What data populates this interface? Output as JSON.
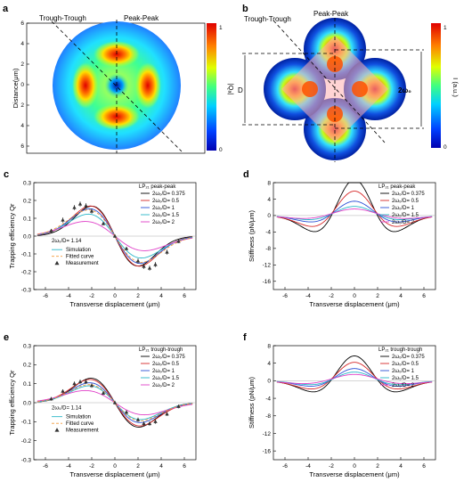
{
  "colors": {
    "black": "#000000",
    "red": "#d62728",
    "blue": "#2a4fd6",
    "cyan": "#29b6c8",
    "magenta": "#e040c8",
    "orange": "#f29a3a",
    "frame": "#000000"
  },
  "panels": {
    "a": {
      "label": "a",
      "left_annot": "Trough-Trough",
      "right_annot": "Peak-Peak",
      "ylabel": "Distance(μm)",
      "yticks": [
        "6",
        "4",
        "2",
        "0",
        "2",
        "4",
        "6"
      ],
      "cbar_label": "|Qₐ|",
      "cbar_max": "1",
      "cbar_min": "0"
    },
    "b": {
      "label": "b",
      "left_annot": "Trough-Trough",
      "right_annot": "Peak-Peak",
      "d_label": "D",
      "w_label": "2ω₀",
      "cbar_label": "I (a.u.)",
      "cbar_max": "1",
      "cbar_min": "0"
    }
  },
  "chart_data": [
    {
      "id": "c",
      "type": "line",
      "label": "c",
      "title": "LP₂₁  peak-peak",
      "xlabel": "Transverse displacement (μm)",
      "ylabel": "Trapping efficiency Qr",
      "xlim": [
        -7,
        7
      ],
      "ylim": [
        -0.3,
        0.3
      ],
      "xticks": [
        "-6",
        "-4",
        "-2",
        "0",
        "2",
        "4",
        "6"
      ],
      "yticks": [
        "0.3",
        "0.2",
        "0.1",
        "0.0",
        "-0.1",
        "-0.2",
        "-0.3"
      ],
      "legend": [
        "2ω₀/D= 0.375",
        "2ω₀/D= 0.5",
        "2ω₀/D= 1",
        "2ω₀/D= 1.5",
        "2ω₀/D= 2"
      ],
      "legend2_title": "2ω₀/D= 1.14",
      "legend2": [
        "Simulation",
        "Fitted curve",
        "Measurement"
      ],
      "series": [
        {
          "name": "2ω₀/D= 0.375",
          "kind": "qr",
          "A": 0.27,
          "p": 3.2,
          "s": 0.9
        },
        {
          "name": "2ω₀/D= 0.5",
          "kind": "qr",
          "A": 0.24,
          "p": 3.0,
          "s": 1.05
        },
        {
          "name": "2ω₀/D= 1",
          "kind": "qr",
          "A": 0.19,
          "p": 2.7,
          "s": 1.3
        },
        {
          "name": "2ω₀/D= 1.5",
          "kind": "qr",
          "A": 0.14,
          "p": 2.6,
          "s": 1.7
        },
        {
          "name": "2ω₀/D= 2",
          "kind": "qr",
          "A": 0.09,
          "p": 2.8,
          "s": 2.2
        }
      ],
      "fit": {
        "A": 0.18,
        "p": 2.8,
        "s": 1.4
      },
      "measurement": {
        "x": [
          -5.5,
          -4.5,
          -3.5,
          -3,
          -2.5,
          -2,
          -1,
          0,
          1,
          2,
          2.5,
          3,
          3.5,
          4.5,
          5.5
        ],
        "y": [
          0.03,
          0.09,
          0.16,
          0.18,
          0.17,
          0.14,
          0.07,
          0.0,
          -0.07,
          -0.14,
          -0.17,
          -0.18,
          -0.16,
          -0.09,
          -0.03
        ],
        "err": [
          0.01,
          0.015,
          0.015,
          0.015,
          0.015,
          0.015,
          0.01,
          0.01,
          0.01,
          0.015,
          0.015,
          0.015,
          0.015,
          0.015,
          0.01
        ]
      }
    },
    {
      "id": "d",
      "type": "line",
      "label": "d",
      "title": "LP₂₁  peak-peak",
      "xlabel": "Transverse displacement (μm)",
      "ylabel": "Stiffness (pN/μm)",
      "xlim": [
        -7,
        7
      ],
      "ylim": [
        -18,
        8
      ],
      "xticks": [
        "-6",
        "-4",
        "-2",
        "0",
        "2",
        "4",
        "6"
      ],
      "yticks": [
        "8",
        "4",
        "0",
        "-4",
        "-8",
        "-12",
        "-16"
      ],
      "legend": [
        "2ω₀/D= 0.375",
        "2ω₀/D= 0.5",
        "2ω₀/D= 1",
        "2ω₀/D= 1.5",
        "2ω₀/D= 2"
      ],
      "series": [
        {
          "name": "2ω₀/D= 0.375",
          "kind": "k",
          "A": 0.27,
          "p": 3.2,
          "s": 0.9,
          "scale": -63
        },
        {
          "name": "2ω₀/D= 0.5",
          "kind": "k",
          "A": 0.24,
          "p": 3.0,
          "s": 1.05,
          "scale": -45
        },
        {
          "name": "2ω₀/D= 1",
          "kind": "k",
          "A": 0.19,
          "p": 2.7,
          "s": 1.3,
          "scale": -30
        },
        {
          "name": "2ω₀/D= 1.5",
          "kind": "k",
          "A": 0.14,
          "p": 2.6,
          "s": 1.7,
          "scale": -25
        },
        {
          "name": "2ω₀/D= 2",
          "kind": "k",
          "A": 0.09,
          "p": 2.8,
          "s": 2.2,
          "scale": -30
        }
      ]
    },
    {
      "id": "e",
      "type": "line",
      "label": "e",
      "title": "LP₂₁  trough-trough",
      "xlabel": "Transverse displacement (μm)",
      "ylabel": "Trapping efficiency Qr",
      "xlim": [
        -7,
        7
      ],
      "ylim": [
        -0.3,
        0.3
      ],
      "xticks": [
        "-6",
        "-4",
        "-2",
        "0",
        "2",
        "4",
        "6"
      ],
      "yticks": [
        "0.3",
        "0.2",
        "0.1",
        "0.0",
        "-0.1",
        "-0.2",
        "-0.3"
      ],
      "legend": [
        "2ω₀/D= 0.375",
        "2ω₀/D= 0.5",
        "2ω₀/D= 1",
        "2ω₀/D= 1.5",
        "2ω₀/D= 2"
      ],
      "legend2_title": "2ω₀/D= 1.14",
      "legend2": [
        "Simulation",
        "Fitted curve",
        "Measurement"
      ],
      "series": [
        {
          "name": "2ω₀/D= 0.375",
          "kind": "qr",
          "A": 0.2,
          "p": 3.2,
          "s": 0.95
        },
        {
          "name": "2ω₀/D= 0.5",
          "kind": "qr",
          "A": 0.17,
          "p": 3.0,
          "s": 1.1
        },
        {
          "name": "2ω₀/D= 1",
          "kind": "qr",
          "A": 0.13,
          "p": 2.7,
          "s": 1.3
        },
        {
          "name": "2ω₀/D= 1.5",
          "kind": "qr",
          "A": 0.1,
          "p": 2.5,
          "s": 1.7
        },
        {
          "name": "2ω₀/D= 2",
          "kind": "qr",
          "A": 0.07,
          "p": 2.8,
          "s": 2.2
        }
      ],
      "fit": {
        "A": 0.115,
        "p": 2.7,
        "s": 1.4
      },
      "measurement": {
        "x": [
          -5.5,
          -4.5,
          -3.5,
          -3,
          -2.5,
          -2,
          -1,
          0,
          1,
          2,
          2.5,
          3,
          3.5,
          4.5,
          5.5
        ],
        "y": [
          0.02,
          0.06,
          0.1,
          0.11,
          0.11,
          0.09,
          0.05,
          0.0,
          -0.05,
          -0.09,
          -0.11,
          -0.11,
          -0.1,
          -0.06,
          -0.02
        ],
        "err": [
          0.01,
          0.01,
          0.012,
          0.012,
          0.012,
          0.012,
          0.01,
          0.01,
          0.01,
          0.012,
          0.012,
          0.012,
          0.012,
          0.01,
          0.01
        ]
      }
    },
    {
      "id": "f",
      "type": "line",
      "label": "f",
      "title": "LP₂₁  trough-trough",
      "xlabel": "Transverse displacement (μm)",
      "ylabel": "Stiffness (pN/μm)",
      "xlim": [
        -7,
        7
      ],
      "ylim": [
        -18,
        8
      ],
      "xticks": [
        "-6",
        "-4",
        "-2",
        "0",
        "2",
        "4",
        "6"
      ],
      "yticks": [
        "8",
        "4",
        "0",
        "-4",
        "-8",
        "-12",
        "-16"
      ],
      "legend": [
        "2ω₀/D= 0.375",
        "2ω₀/D= 0.5",
        "2ω₀/D= 1",
        "2ω₀/D= 1.5",
        "2ω₀/D= 2"
      ],
      "series": [
        {
          "name": "2ω₀/D= 0.375",
          "kind": "k",
          "A": 0.2,
          "p": 3.2,
          "s": 0.95,
          "scale": -55
        },
        {
          "name": "2ω₀/D= 0.5",
          "kind": "k",
          "A": 0.17,
          "p": 3.0,
          "s": 1.1,
          "scale": -45
        },
        {
          "name": "2ω₀/D= 1",
          "kind": "k",
          "A": 0.13,
          "p": 2.7,
          "s": 1.3,
          "scale": -35
        },
        {
          "name": "2ω₀/D= 1.5",
          "kind": "k",
          "A": 0.1,
          "p": 2.5,
          "s": 1.7,
          "scale": -30
        },
        {
          "name": "2ω₀/D= 2",
          "kind": "k",
          "A": 0.07,
          "p": 2.8,
          "s": 2.2,
          "scale": -35
        }
      ]
    }
  ]
}
